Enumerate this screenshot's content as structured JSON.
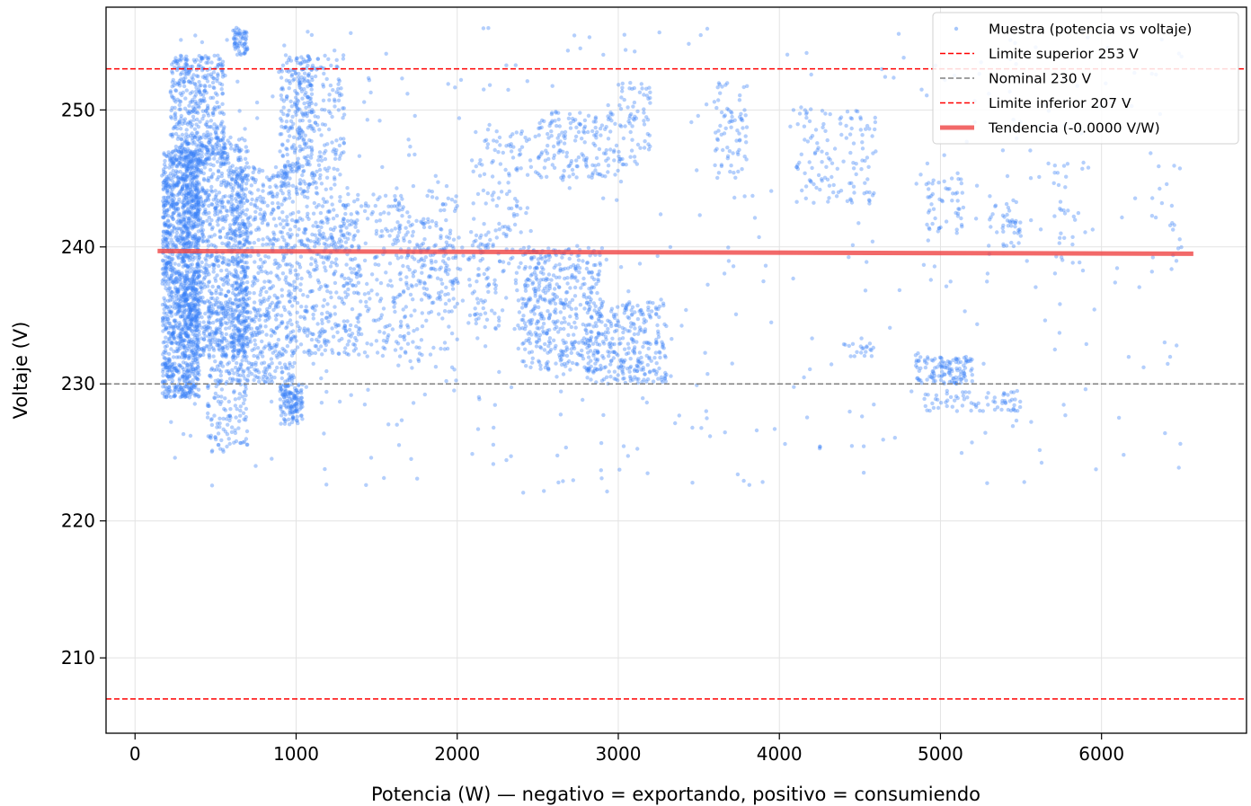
{
  "chart_data": {
    "type": "scatter",
    "title": "",
    "xlabel": "Potencia (W) — negativo = exportando, positivo = consumiendo",
    "ylabel": "Voltaje (V)",
    "xlim": [
      -180,
      6900
    ],
    "ylim": [
      204.5,
      257.5
    ],
    "x_ticks": [
      0,
      1000,
      2000,
      3000,
      4000,
      5000,
      6000
    ],
    "y_ticks": [
      210,
      220,
      230,
      240,
      250
    ],
    "grid": true,
    "legend_position": "top-right",
    "colors": {
      "scatter": "#3b82f6",
      "limit": "#ff0000",
      "nominal": "#808080",
      "trend": "#ef4444"
    },
    "legend": [
      {
        "label": "Muestra (potencia vs voltaje)",
        "kind": "scatter"
      },
      {
        "label": "Limite superior 253 V",
        "kind": "limit"
      },
      {
        "label": "Nominal 230 V",
        "kind": "nominal"
      },
      {
        "label": "Limite inferior 207 V",
        "kind": "limit"
      },
      {
        "label": "Tendencia (-0.0000 V/W)",
        "kind": "trend"
      }
    ],
    "reference_lines": [
      {
        "label": "Limite superior 253 V",
        "y": 253,
        "kind": "limit"
      },
      {
        "label": "Nominal 230 V",
        "y": 230,
        "kind": "nominal"
      },
      {
        "label": "Limite inferior 207 V",
        "y": 207,
        "kind": "limit"
      }
    ],
    "trend": {
      "label": "Tendencia (-0.0000 V/W)",
      "x": [
        140,
        6570
      ],
      "y": [
        239.7,
        239.5
      ]
    },
    "series": [
      {
        "name": "Muestra (potencia vs voltaje)",
        "clusters": [
          {
            "x": [
              170,
              400
            ],
            "y": [
              229,
              247
            ],
            "n": 1300
          },
          {
            "x": [
              220,
              560
            ],
            "y": [
              246,
              254
            ],
            "n": 420
          },
          {
            "x": [
              300,
              700
            ],
            "y": [
              232,
              248
            ],
            "n": 1000
          },
          {
            "x": [
              450,
              700
            ],
            "y": [
              225,
              236
            ],
            "n": 240
          },
          {
            "x": [
              600,
              1000
            ],
            "y": [
              230,
              246
            ],
            "n": 650
          },
          {
            "x": [
              600,
              700
            ],
            "y": [
              254,
              256
            ],
            "n": 60
          },
          {
            "x": [
              900,
              1040
            ],
            "y": [
              227,
              230
            ],
            "n": 140
          },
          {
            "x": [
              900,
              1100
            ],
            "y": [
              244,
              254
            ],
            "n": 200
          },
          {
            "x": [
              1000,
              1300
            ],
            "y": [
              240,
              254
            ],
            "n": 260
          },
          {
            "x": [
              1000,
              1400
            ],
            "y": [
              232,
              242
            ],
            "n": 280
          },
          {
            "x": [
              1300,
              1700
            ],
            "y": [
              232,
              244
            ],
            "n": 160
          },
          {
            "x": [
              1600,
              2000
            ],
            "y": [
              231,
              245
            ],
            "n": 160
          },
          {
            "x": [
              1700,
              2200
            ],
            "y": [
              235,
              242
            ],
            "n": 130
          },
          {
            "x": [
              2100,
              2500
            ],
            "y": [
              234,
              249
            ],
            "n": 180
          },
          {
            "x": [
              2400,
              2900
            ],
            "y": [
              231,
              240
            ],
            "n": 420
          },
          {
            "x": [
              2500,
              3000
            ],
            "y": [
              245,
              250
            ],
            "n": 160
          },
          {
            "x": [
              2800,
              3300
            ],
            "y": [
              230,
              236
            ],
            "n": 300
          },
          {
            "x": [
              3000,
              3200
            ],
            "y": [
              246,
              252
            ],
            "n": 70
          },
          {
            "x": [
              3600,
              3800
            ],
            "y": [
              245,
              252
            ],
            "n": 70
          },
          {
            "x": [
              4100,
              4600
            ],
            "y": [
              243,
              250
            ],
            "n": 120
          },
          {
            "x": [
              4400,
              4600
            ],
            "y": [
              232,
              233
            ],
            "n": 20
          },
          {
            "x": [
              4850,
              5200
            ],
            "y": [
              230,
              232
            ],
            "n": 120
          },
          {
            "x": [
              4900,
              5500
            ],
            "y": [
              228,
              229.5
            ],
            "n": 70
          },
          {
            "x": [
              4900,
              5150
            ],
            "y": [
              241,
              245
            ],
            "n": 50
          },
          {
            "x": [
              5300,
              5500
            ],
            "y": [
              240,
              244
            ],
            "n": 40
          },
          {
            "x": [
              5700,
              5900
            ],
            "y": [
              238,
              246
            ],
            "n": 30
          },
          {
            "x": [
              6300,
              6500
            ],
            "y": [
              238,
              246
            ],
            "n": 20
          },
          {
            "x": [
              150,
              6500
            ],
            "y": [
              222,
              256
            ],
            "n": 500
          }
        ]
      }
    ]
  }
}
